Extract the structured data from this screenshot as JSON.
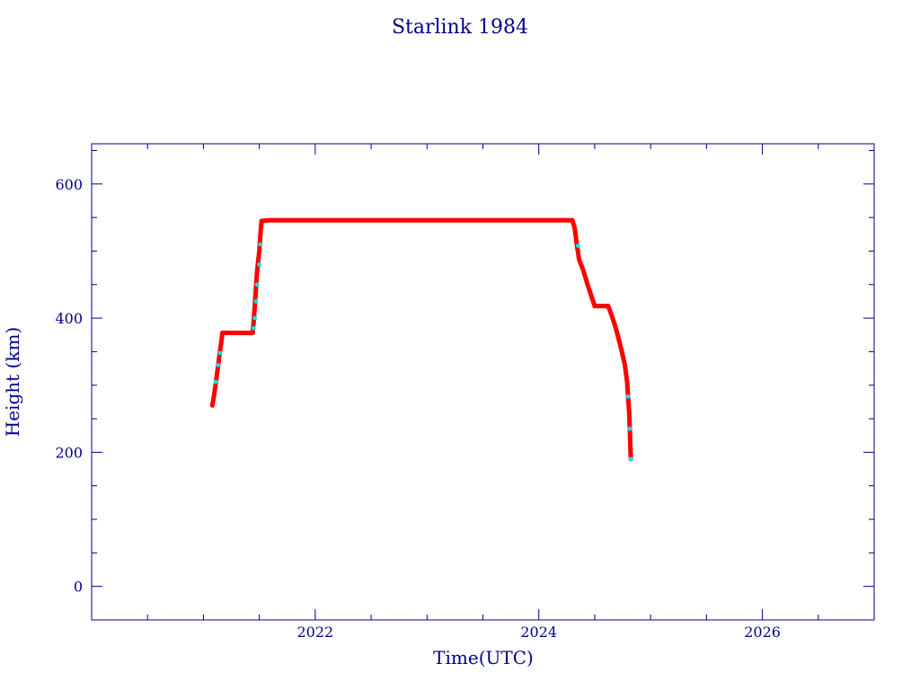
{
  "chart_data": {
    "type": "scatter",
    "title": "Starlink 1984",
    "xlabel": "Time(UTC)",
    "ylabel": "Height (km)",
    "xlim": [
      2020.0,
      2027.0
    ],
    "ylim": [
      -50,
      660
    ],
    "xticks": [
      {
        "value": 2022,
        "label": "2022"
      },
      {
        "value": 2024,
        "label": "2024"
      },
      {
        "value": 2026,
        "label": "2026"
      }
    ],
    "yticks": [
      {
        "value": 0,
        "label": "0"
      },
      {
        "value": 200,
        "label": "200"
      },
      {
        "value": 400,
        "label": "400"
      },
      {
        "value": 600,
        "label": "600"
      }
    ],
    "x_minor_step": 0.5,
    "y_minor_step": 50,
    "grid": false,
    "colors": {
      "frame": "#00008b",
      "text": "#00008b",
      "series": "#ff0000",
      "highlight": "#00e5ee"
    },
    "series": [
      {
        "values": [
          [
            2021.08,
            270
          ],
          [
            2021.1,
            290
          ],
          [
            2021.12,
            315
          ],
          [
            2021.14,
            340
          ],
          [
            2021.16,
            365
          ],
          [
            2021.17,
            378
          ],
          [
            2021.2,
            378
          ],
          [
            2021.25,
            378
          ],
          [
            2021.3,
            378
          ],
          [
            2021.35,
            378
          ],
          [
            2021.4,
            378
          ],
          [
            2021.44,
            378
          ],
          [
            2021.45,
            395
          ],
          [
            2021.46,
            420
          ],
          [
            2021.47,
            445
          ],
          [
            2021.48,
            470
          ],
          [
            2021.5,
            500
          ],
          [
            2021.51,
            525
          ],
          [
            2021.52,
            545
          ],
          [
            2021.6,
            546
          ],
          [
            2021.8,
            546
          ],
          [
            2022.0,
            546
          ],
          [
            2022.2,
            546
          ],
          [
            2022.4,
            546
          ],
          [
            2022.6,
            546
          ],
          [
            2022.8,
            546
          ],
          [
            2023.0,
            546
          ],
          [
            2023.2,
            546
          ],
          [
            2023.4,
            546
          ],
          [
            2023.6,
            546
          ],
          [
            2023.8,
            546
          ],
          [
            2024.0,
            546
          ],
          [
            2024.2,
            546
          ],
          [
            2024.3,
            546
          ],
          [
            2024.32,
            535
          ],
          [
            2024.34,
            510
          ],
          [
            2024.36,
            488
          ],
          [
            2024.4,
            470
          ],
          [
            2024.44,
            448
          ],
          [
            2024.48,
            428
          ],
          [
            2024.5,
            418
          ],
          [
            2024.55,
            418
          ],
          [
            2024.6,
            418
          ],
          [
            2024.62,
            418
          ],
          [
            2024.65,
            405
          ],
          [
            2024.68,
            390
          ],
          [
            2024.71,
            372
          ],
          [
            2024.74,
            352
          ],
          [
            2024.77,
            330
          ],
          [
            2024.79,
            305
          ],
          [
            2024.8,
            280
          ],
          [
            2024.81,
            255
          ],
          [
            2024.815,
            230
          ],
          [
            2024.82,
            205
          ],
          [
            2024.823,
            190
          ]
        ]
      }
    ],
    "highlight_points": [
      [
        2021.11,
        305
      ],
      [
        2021.13,
        330
      ],
      [
        2021.15,
        348
      ],
      [
        2021.45,
        385
      ],
      [
        2021.46,
        400
      ],
      [
        2021.47,
        425
      ],
      [
        2021.48,
        450
      ],
      [
        2021.5,
        480
      ],
      [
        2021.51,
        510
      ],
      [
        2024.35,
        508
      ],
      [
        2024.8,
        283
      ],
      [
        2024.815,
        235
      ],
      [
        2024.823,
        190
      ]
    ]
  }
}
